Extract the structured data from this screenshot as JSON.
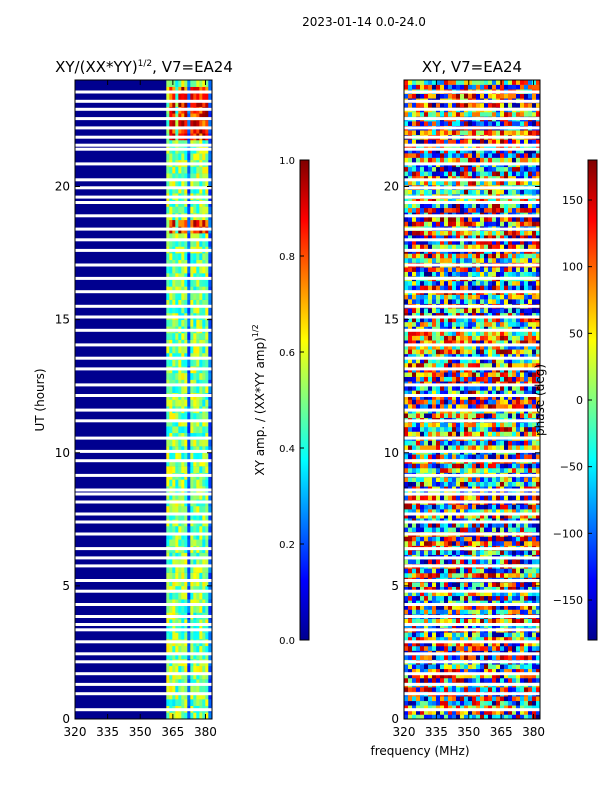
{
  "suptitle": "2023-01-14 0.0-24.0",
  "chart_data": [
    {
      "type": "heatmap",
      "title": "XY/(XX*YY)",
      "title_superscript": "1/2",
      "title_suffix": ", V7=EA24",
      "ylabel": "UT (hours)",
      "xlabel": "",
      "x_ticks": [
        320,
        335,
        350,
        365,
        380
      ],
      "xlim": [
        320,
        383
      ],
      "y_ticks": [
        0,
        5,
        10,
        15,
        20
      ],
      "ylim": [
        0,
        24
      ],
      "colorbar": {
        "label": "XY amp. / (XX*YY amp)",
        "label_superscript": "1/2",
        "ticks": [
          "0.0",
          "0.2",
          "0.4",
          "0.6",
          "0.8",
          "1.0"
        ],
        "range": [
          0.0,
          1.0
        ],
        "colormap": "jet"
      },
      "bright_columns_mhz": [
        364,
        369,
        374,
        379
      ],
      "flagged_gaps_hours": [
        0.35,
        0.95,
        1.3,
        1.7,
        2.15,
        2.45,
        2.9,
        3.35,
        3.55,
        3.85,
        4.3,
        4.8,
        5.2,
        5.75,
        6.05,
        6.4,
        6.95,
        7.4,
        7.7,
        8.15,
        8.45,
        8.6,
        9.15,
        9.7,
        10.05,
        10.55,
        11.2,
        11.6,
        12.15,
        12.55,
        13.15,
        13.55,
        14.05,
        14.6,
        15.1,
        15.5,
        16.05,
        16.55,
        17.05,
        17.6,
        18.0,
        18.4,
        18.9,
        19.4,
        19.6,
        19.95,
        20.25,
        20.85,
        21.4,
        21.55,
        21.85,
        22.2,
        22.55,
        22.9,
        23.2,
        23.55
      ]
    },
    {
      "type": "heatmap",
      "title": "XY, V7=EA24",
      "xlabel": "frequency (MHz)",
      "ylabel": "",
      "x_ticks": [
        320,
        335,
        350,
        365,
        380
      ],
      "xlim": [
        320,
        383
      ],
      "y_ticks": [
        0,
        5,
        10,
        15,
        20
      ],
      "ylim": [
        0,
        24
      ],
      "colorbar": {
        "label": "phase (deg)",
        "ticks": [
          "150",
          "100",
          "50",
          "0",
          "−50",
          "−100",
          "−150"
        ],
        "tick_values": [
          150,
          100,
          50,
          0,
          -50,
          -100,
          -150
        ],
        "range": [
          -180,
          180
        ],
        "colormap": "jet"
      }
    }
  ],
  "colors": {
    "low": "#00008f",
    "high": "#800000"
  }
}
